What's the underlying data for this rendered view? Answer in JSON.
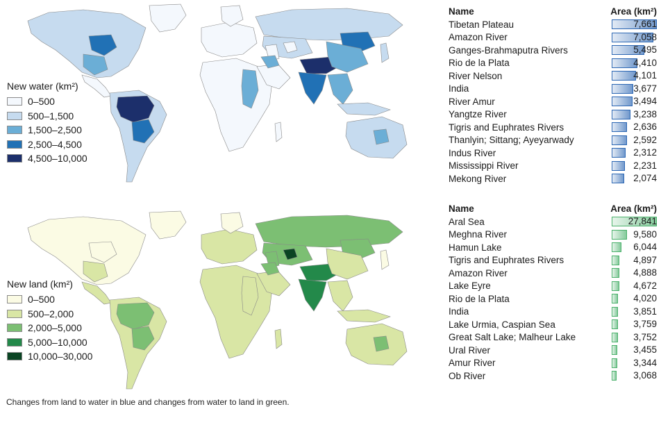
{
  "colors": {
    "water": [
      "#f4f8fd",
      "#c6dbef",
      "#6baed6",
      "#2171b5",
      "#1c2f6b"
    ],
    "land": [
      "#fbfbe4",
      "#d9e6a5",
      "#7cbf73",
      "#23894a",
      "#0a4423"
    ],
    "water_bar": "#2b66b3",
    "land_bar": "#49b06a",
    "ocean": "#ffffff",
    "coast": "#888888"
  },
  "water": {
    "legend_title": "New water (km²)",
    "legend": [
      "0–500",
      "500–1,500",
      "1,500–2,500",
      "2,500–4,500",
      "4,500–10,000"
    ],
    "table_header_name": "Name",
    "table_header_area": "Area (km²)",
    "rows": [
      {
        "name": "Tibetan Plateau",
        "area": "7,661",
        "value": 7661
      },
      {
        "name": "Amazon River",
        "area": "7,058",
        "value": 7058
      },
      {
        "name": "Ganges-Brahmaputra Rivers",
        "area": "5,495",
        "value": 5495
      },
      {
        "name": "Rio de la Plata",
        "area": "4,410",
        "value": 4410
      },
      {
        "name": "River Nelson",
        "area": "4,101",
        "value": 4101
      },
      {
        "name": "India",
        "area": "3,677",
        "value": 3677
      },
      {
        "name": "River Amur",
        "area": "3,494",
        "value": 3494
      },
      {
        "name": "Yangtze River",
        "area": "3,238",
        "value": 3238
      },
      {
        "name": "Tigris and Euphrates Rivers",
        "area": "2,636",
        "value": 2636
      },
      {
        "name": "Thanlyin; Sittang; Ayeyarwady",
        "area": "2,592",
        "value": 2592
      },
      {
        "name": "Indus River",
        "area": "2,312",
        "value": 2312
      },
      {
        "name": "Mississippi River",
        "area": "2,231",
        "value": 2231
      },
      {
        "name": "Mekong River",
        "area": "2,074",
        "value": 2074
      }
    ]
  },
  "land": {
    "legend_title": "New land (km²)",
    "legend": [
      "0–500",
      "500–2,000",
      "2,000–5,000",
      "5,000–10,000",
      "10,000–30,000"
    ],
    "table_header_name": "Name",
    "table_header_area": "Area (km²)",
    "rows": [
      {
        "name": "Aral Sea",
        "area": "27,841",
        "value": 27841
      },
      {
        "name": "Meghna River",
        "area": "9,580",
        "value": 9580
      },
      {
        "name": "Hamun Lake",
        "area": "6,044",
        "value": 6044
      },
      {
        "name": "Tigris and Euphrates Rivers",
        "area": "4,897",
        "value": 4897
      },
      {
        "name": "Amazon River",
        "area": "4,888",
        "value": 4888
      },
      {
        "name": "Lake Eyre",
        "area": "4,672",
        "value": 4672
      },
      {
        "name": "Rio de la Plata",
        "area": "4,020",
        "value": 4020
      },
      {
        "name": "India",
        "area": "3,851",
        "value": 3851
      },
      {
        "name": "Lake Urmia, Caspian Sea",
        "area": "3,759",
        "value": 3759
      },
      {
        "name": "Great Salt Lake; Malheur Lake",
        "area": "3,752",
        "value": 3752
      },
      {
        "name": "Ural River",
        "area": "3,455",
        "value": 3455
      },
      {
        "name": "Amur River",
        "area": "3,344",
        "value": 3344
      },
      {
        "name": "Ob River",
        "area": "3,068",
        "value": 3068
      }
    ]
  },
  "map_regions": [
    {
      "name": "north-america",
      "water_class": 1,
      "land_class": 0
    },
    {
      "name": "greenland",
      "water_class": 0,
      "land_class": 0
    },
    {
      "name": "nelson-basin",
      "water_class": 3,
      "land_class": 0
    },
    {
      "name": "mississippi-basin",
      "water_class": 2,
      "land_class": 1
    },
    {
      "name": "central-america",
      "water_class": 0,
      "land_class": 1
    },
    {
      "name": "south-america",
      "water_class": 1,
      "land_class": 1
    },
    {
      "name": "amazon-basin",
      "water_class": 4,
      "land_class": 2
    },
    {
      "name": "la-plata-basin",
      "water_class": 3,
      "land_class": 2
    },
    {
      "name": "europe",
      "water_class": 0,
      "land_class": 1
    },
    {
      "name": "scandinavia",
      "water_class": 0,
      "land_class": 0
    },
    {
      "name": "africa",
      "water_class": 0,
      "land_class": 1
    },
    {
      "name": "nile-basin",
      "water_class": 2,
      "land_class": 1
    },
    {
      "name": "madagascar",
      "water_class": 0,
      "land_class": 1
    },
    {
      "name": "northern-asia",
      "water_class": 1,
      "land_class": 2
    },
    {
      "name": "amur-basin",
      "water_class": 3,
      "land_class": 2
    },
    {
      "name": "central-asia",
      "water_class": 1,
      "land_class": 2
    },
    {
      "name": "aral-sea",
      "water_class": 0,
      "land_class": 4
    },
    {
      "name": "caspian-region",
      "water_class": 0,
      "land_class": 2
    },
    {
      "name": "arabia",
      "water_class": 0,
      "land_class": 1
    },
    {
      "name": "tigris-euphrates",
      "water_class": 2,
      "land_class": 2
    },
    {
      "name": "tibetan-plateau",
      "water_class": 4,
      "land_class": 3
    },
    {
      "name": "india",
      "water_class": 3,
      "land_class": 3
    },
    {
      "name": "southeast-asia",
      "water_class": 2,
      "land_class": 1
    },
    {
      "name": "china-east",
      "water_class": 2,
      "land_class": 1
    },
    {
      "name": "japan",
      "water_class": 1,
      "land_class": 0
    },
    {
      "name": "indonesia",
      "water_class": 1,
      "land_class": 1
    },
    {
      "name": "australia",
      "water_class": 1,
      "land_class": 1
    },
    {
      "name": "lake-eyre",
      "water_class": 2,
      "land_class": 2
    }
  ],
  "caption": "Changes from land to water in blue and changes from water to land in green."
}
